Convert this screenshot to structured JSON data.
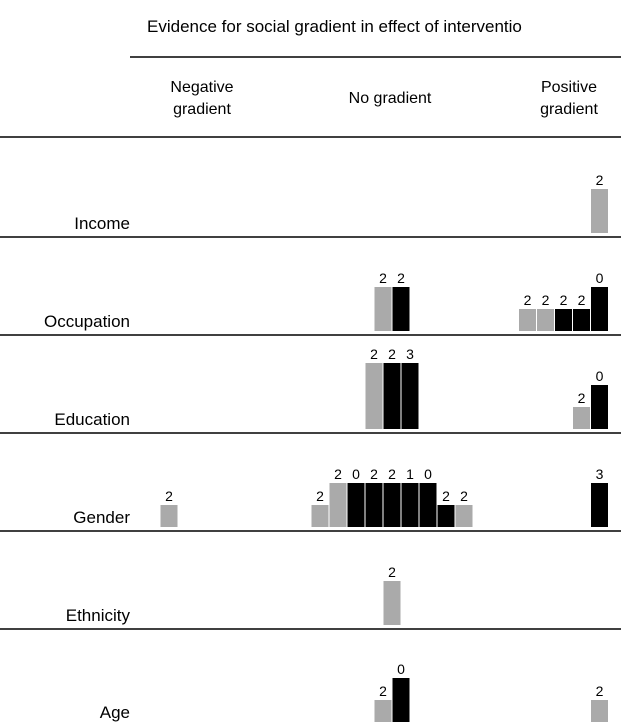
{
  "chart_data": {
    "type": "bar",
    "title": "Evidence for social gradient in effect of interventio",
    "columns": [
      {
        "key": "negative",
        "label_line1": "Negative",
        "label_line2": "gradient"
      },
      {
        "key": "none",
        "label_line1": "No gradient",
        "label_line2": ""
      },
      {
        "key": "positive",
        "label_line1": "Positive",
        "label_line2": "gradient"
      }
    ],
    "legend": "none",
    "grid": false,
    "colors": {
      "grey": "#aaaaaa",
      "black": "#000000"
    },
    "bar_value_scale": [
      0,
      3
    ],
    "rows": [
      {
        "label": "Income",
        "groups": {
          "negative": [],
          "none": [],
          "positive": [
            {
              "value": 2,
              "label": "2",
              "color": "grey"
            }
          ]
        }
      },
      {
        "label": "Occupation",
        "groups": {
          "negative": [],
          "none": [
            {
              "value": 2,
              "label": "2",
              "color": "grey"
            },
            {
              "value": 2,
              "label": "2",
              "color": "black"
            }
          ],
          "positive": [
            {
              "value": 1,
              "label": "2",
              "color": "grey"
            },
            {
              "value": 1,
              "label": "2",
              "color": "grey"
            },
            {
              "value": 1,
              "label": "2",
              "color": "black"
            },
            {
              "value": 1,
              "label": "2",
              "color": "black"
            },
            {
              "value": 2,
              "label": "0",
              "color": "black"
            }
          ]
        }
      },
      {
        "label": "Education",
        "groups": {
          "negative": [],
          "none": [
            {
              "value": 3,
              "label": "2",
              "color": "grey"
            },
            {
              "value": 3,
              "label": "2",
              "color": "black"
            },
            {
              "value": 3,
              "label": "3",
              "color": "black"
            }
          ],
          "positive": [
            {
              "value": 1,
              "label": "2",
              "color": "grey"
            },
            {
              "value": 2,
              "label": "0",
              "color": "black"
            }
          ]
        }
      },
      {
        "label": "Gender",
        "groups": {
          "negative": [
            {
              "value": 1,
              "label": "2",
              "color": "grey"
            }
          ],
          "none": [
            {
              "value": 1,
              "label": "2",
              "color": "grey"
            },
            {
              "value": 2,
              "label": "2",
              "color": "grey"
            },
            {
              "value": 2,
              "label": "0",
              "color": "black"
            },
            {
              "value": 2,
              "label": "2",
              "color": "black"
            },
            {
              "value": 2,
              "label": "2",
              "color": "black"
            },
            {
              "value": 2,
              "label": "1",
              "color": "black"
            },
            {
              "value": 2,
              "label": "0",
              "color": "black"
            },
            {
              "value": 1,
              "label": "2",
              "color": "black"
            },
            {
              "value": 1,
              "label": "2",
              "color": "grey"
            }
          ],
          "positive": [
            {
              "value": 2,
              "label": "3",
              "color": "black"
            }
          ]
        }
      },
      {
        "label": "Ethnicity",
        "groups": {
          "negative": [],
          "none": [
            {
              "value": 2,
              "label": "2",
              "color": "grey"
            }
          ],
          "positive": []
        }
      },
      {
        "label": "Age",
        "groups": {
          "negative": [],
          "none": [
            {
              "value": 1,
              "label": "2",
              "color": "grey"
            },
            {
              "value": 2,
              "label": "0",
              "color": "black"
            }
          ],
          "positive": [
            {
              "value": 1,
              "label": "2",
              "color": "grey"
            }
          ]
        }
      }
    ]
  }
}
